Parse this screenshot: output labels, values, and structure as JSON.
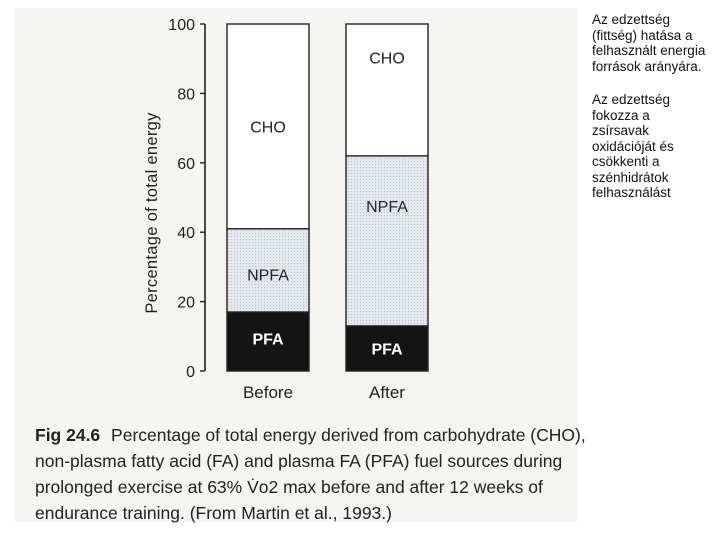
{
  "side_note": {
    "paragraph_1": "Az edzettség (fittség) hatása a felhasznált energia források arányára.",
    "paragraph_2": "Az edzettség fokozza a zsírsavak oxidációját és csökkenti a szénhidrátok felhasználást"
  },
  "caption": {
    "fig_label": "Fig 24.6",
    "text": "Percentage of total energy derived from carbohydrate (CHO), non-plasma fatty acid (FA) and plasma FA (PFA) fuel sources during prolonged exercise at 63% V̇o2 max before and after 12 weeks of endurance training. (From Martin et al., 1993.)"
  },
  "chart_data": {
    "type": "bar",
    "stacked": true,
    "title": "",
    "xlabel": "",
    "ylabel": "Percentage of total energy",
    "ylim": [
      0,
      100
    ],
    "yticks": [
      0,
      20,
      40,
      60,
      80,
      100
    ],
    "categories": [
      "Before",
      "After"
    ],
    "series": [
      {
        "name": "PFA",
        "values": [
          17,
          13
        ],
        "color": "#141414",
        "text_color": "#ffffff"
      },
      {
        "name": "NPFA",
        "values": [
          24,
          49
        ],
        "color": "#dfe5ec",
        "text_color": "#222222"
      },
      {
        "name": "CHO",
        "values": [
          59,
          38
        ],
        "color": "#ffffff",
        "text_color": "#222222"
      }
    ]
  }
}
